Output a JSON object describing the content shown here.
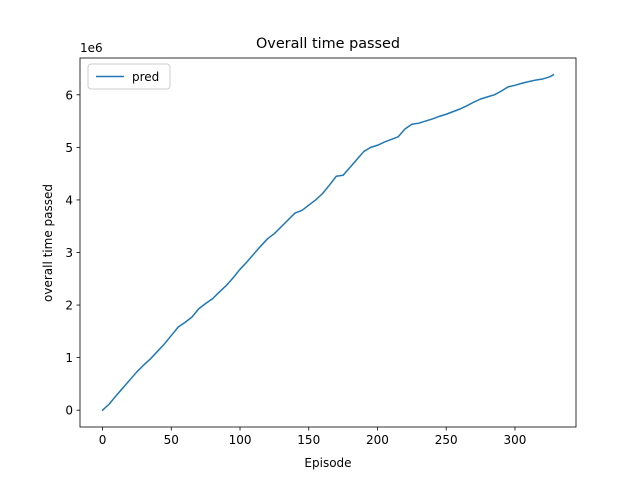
{
  "chart_data": {
    "type": "line",
    "title": "Overall time passed",
    "xlabel": "Episode",
    "ylabel": "overall time passed",
    "y_offset_label": "1e6",
    "xlim": [
      -16.4,
      344.4
    ],
    "ylim": [
      -0.32,
      6.7
    ],
    "xticks": [
      0,
      50,
      100,
      150,
      200,
      250,
      300
    ],
    "yticks": [
      0,
      1,
      2,
      3,
      4,
      5,
      6
    ],
    "grid": false,
    "legend_position": "upper-left",
    "colors": {
      "series": "#1f77b4",
      "axes": "#000000"
    },
    "series": [
      {
        "name": "pred",
        "x": [
          0,
          5,
          10,
          15,
          20,
          25,
          30,
          35,
          40,
          45,
          50,
          55,
          60,
          65,
          70,
          75,
          80,
          85,
          90,
          95,
          100,
          105,
          110,
          115,
          120,
          125,
          130,
          135,
          140,
          145,
          150,
          155,
          160,
          165,
          170,
          175,
          180,
          185,
          190,
          195,
          200,
          205,
          210,
          215,
          220,
          225,
          230,
          235,
          240,
          245,
          250,
          255,
          260,
          265,
          270,
          275,
          280,
          285,
          290,
          295,
          300,
          305,
          310,
          315,
          320,
          325,
          328
        ],
        "y": [
          0.0,
          0.12,
          0.28,
          0.43,
          0.58,
          0.73,
          0.86,
          0.98,
          1.12,
          1.26,
          1.42,
          1.58,
          1.67,
          1.77,
          1.93,
          2.03,
          2.12,
          2.25,
          2.37,
          2.52,
          2.68,
          2.82,
          2.97,
          3.12,
          3.26,
          3.36,
          3.49,
          3.62,
          3.75,
          3.8,
          3.9,
          4.0,
          4.12,
          4.28,
          4.45,
          4.47,
          4.62,
          4.77,
          4.92,
          5.0,
          5.04,
          5.1,
          5.15,
          5.2,
          5.35,
          5.44,
          5.46,
          5.5,
          5.54,
          5.59,
          5.63,
          5.68,
          5.73,
          5.79,
          5.86,
          5.92,
          5.96,
          6.0,
          6.07,
          6.15,
          6.18,
          6.22,
          6.25,
          6.28,
          6.3,
          6.34,
          6.38
        ]
      }
    ]
  }
}
